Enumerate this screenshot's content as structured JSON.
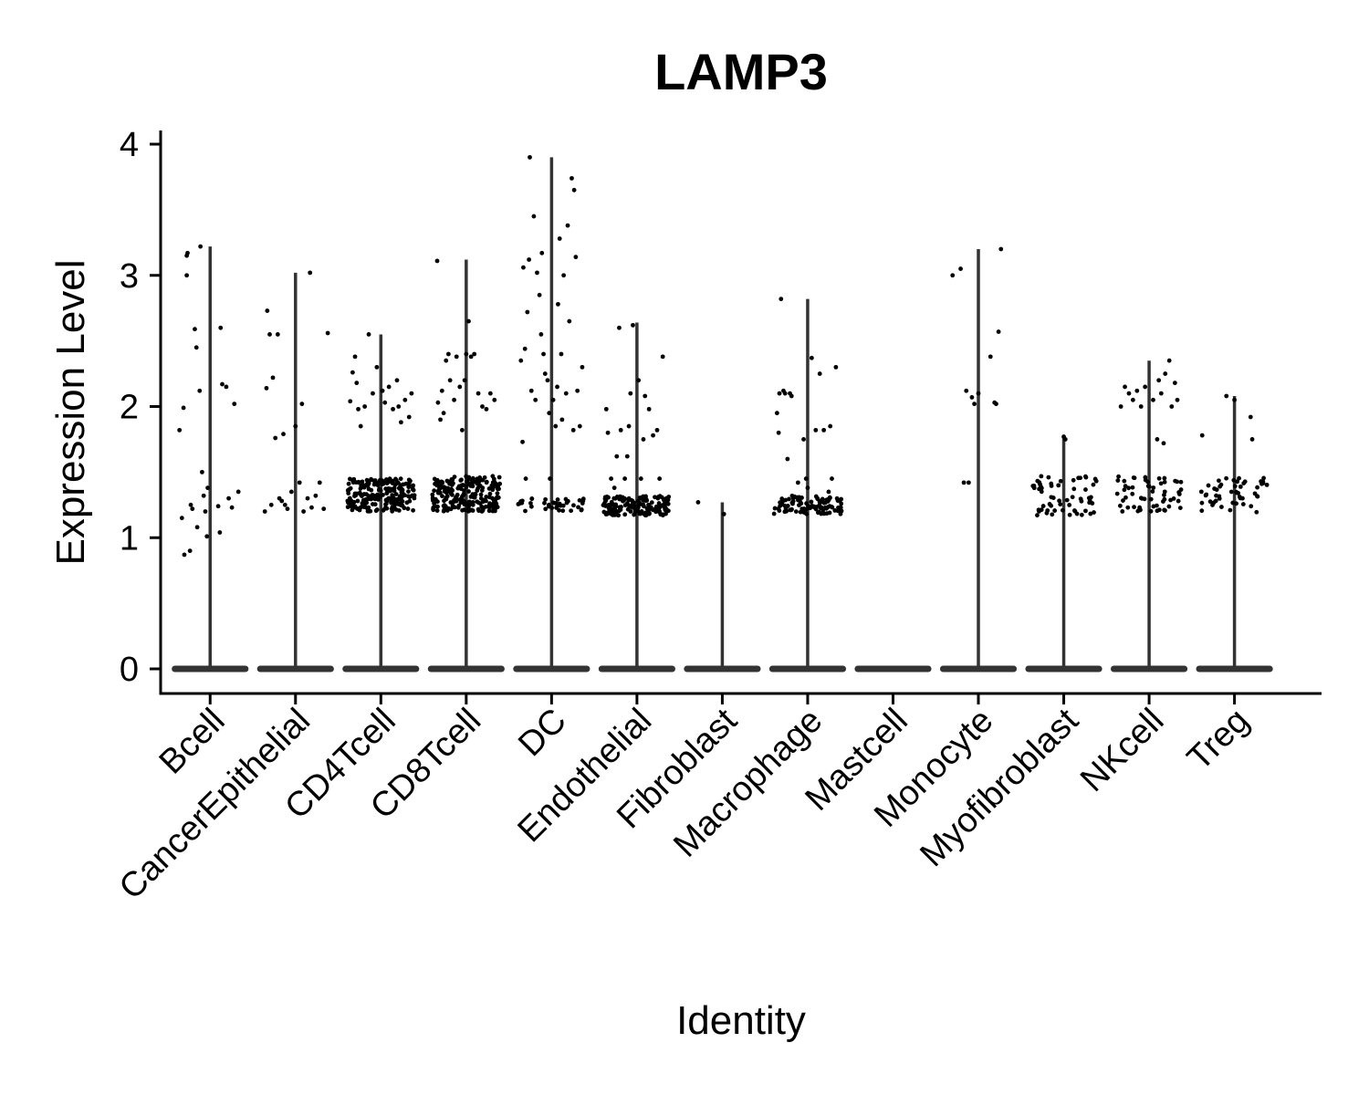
{
  "chart_data": {
    "type": "violin",
    "title": "LAMP3",
    "xlabel": "Identity",
    "ylabel": "Expression Level",
    "ylim": [
      -0.19,
      4.1
    ],
    "yticks": [
      0,
      1,
      2,
      3,
      4
    ],
    "grid": false,
    "legend": "none",
    "point_color": "#000000",
    "violin_color": "#333333",
    "categories": [
      "Bcell",
      "CancerEpithelial",
      "CD4Tcell",
      "CD8Tcell",
      "DC",
      "Endothelial",
      "Fibroblast",
      "Macrophage",
      "Mastcell",
      "Monocyte",
      "Myofibroblast",
      "NKcell",
      "Treg"
    ],
    "series": [
      {
        "name": "Bcell",
        "max": 3.22,
        "points": [
          [
            -0.38,
            1.82
          ],
          [
            -0.35,
            1.15
          ],
          [
            -0.33,
            1.99
          ],
          [
            -0.32,
            0.87
          ],
          [
            -0.29,
            3.15
          ],
          [
            -0.28,
            3.17
          ],
          [
            -0.29,
            3.0
          ],
          [
            -0.25,
            0.9
          ],
          [
            -0.24,
            1.25
          ],
          [
            -0.22,
            1.22
          ],
          [
            -0.19,
            2.59
          ],
          [
            -0.17,
            2.45
          ],
          [
            -0.16,
            1.08
          ],
          [
            -0.13,
            2.12
          ],
          [
            -0.12,
            3.22
          ],
          [
            -0.1,
            1.5
          ],
          [
            -0.08,
            1.32
          ],
          [
            -0.06,
            1.2
          ],
          [
            -0.04,
            1.01
          ],
          [
            -0.03,
            1.38
          ],
          [
            0.1,
            1.24
          ],
          [
            0.12,
            1.04
          ],
          [
            0.13,
            2.6
          ],
          [
            0.15,
            2.17
          ],
          [
            0.2,
            2.15
          ],
          [
            0.23,
            1.3
          ],
          [
            0.27,
            1.23
          ],
          [
            0.3,
            2.02
          ],
          [
            0.35,
            1.35
          ]
        ]
      },
      {
        "name": "CancerEpithelial",
        "max": 3.02,
        "points": [
          [
            -0.38,
            1.2
          ],
          [
            -0.36,
            2.14
          ],
          [
            -0.35,
            2.73
          ],
          [
            -0.32,
            2.55
          ],
          [
            -0.3,
            1.25
          ],
          [
            -0.28,
            2.22
          ],
          [
            -0.25,
            1.76
          ],
          [
            -0.22,
            2.55
          ],
          [
            -0.2,
            1.3
          ],
          [
            -0.17,
            1.28
          ],
          [
            -0.15,
            1.79
          ],
          [
            -0.13,
            1.25
          ],
          [
            -0.1,
            1.22
          ],
          [
            -0.05,
            1.35
          ],
          [
            0.0,
            1.85
          ],
          [
            0.05,
            1.42
          ],
          [
            0.08,
            2.02
          ],
          [
            0.1,
            1.2
          ],
          [
            0.15,
            1.3
          ],
          [
            0.18,
            3.02
          ],
          [
            0.2,
            1.23
          ],
          [
            0.25,
            1.32
          ],
          [
            0.3,
            1.42
          ],
          [
            0.35,
            1.22
          ],
          [
            0.4,
            2.56
          ]
        ]
      },
      {
        "name": "CD4Tcell",
        "max": 2.55,
        "points": [
          [
            -0.38,
            2.04
          ],
          [
            -0.35,
            2.26
          ],
          [
            -0.3,
            2.18
          ],
          [
            -0.28,
            1.98
          ],
          [
            -0.25,
            1.85
          ],
          [
            -0.2,
            2.0
          ],
          [
            -0.15,
            2.55
          ],
          [
            -0.1,
            2.1
          ],
          [
            -0.05,
            2.3
          ],
          [
            0.05,
            2.03
          ],
          [
            0.1,
            2.15
          ],
          [
            0.15,
            1.98
          ],
          [
            0.2,
            2.2
          ],
          [
            0.25,
            1.88
          ],
          [
            0.3,
            2.05
          ],
          [
            0.35,
            1.92
          ],
          [
            0.38,
            2.1
          ],
          [
            -0.32,
            2.38
          ],
          [
            0.02,
            2.12
          ],
          [
            0.22,
            2.0
          ]
        ],
        "dense": {
          "n": 220,
          "y0": 1.2,
          "y1": 1.45
        }
      },
      {
        "name": "CD8Tcell",
        "max": 3.12,
        "points": [
          [
            -0.36,
            3.11
          ],
          [
            -0.35,
            2.03
          ],
          [
            -0.32,
            1.9
          ],
          [
            -0.3,
            2.12
          ],
          [
            -0.25,
            2.35
          ],
          [
            -0.22,
            2.4
          ],
          [
            -0.2,
            2.2
          ],
          [
            -0.15,
            2.05
          ],
          [
            -0.12,
            2.38
          ],
          [
            -0.08,
            2.15
          ],
          [
            -0.05,
            1.82
          ],
          [
            -0.02,
            2.2
          ],
          [
            0.03,
            2.65
          ],
          [
            0.06,
            2.38
          ],
          [
            0.1,
            2.4
          ],
          [
            0.15,
            2.1
          ],
          [
            0.2,
            2.0
          ],
          [
            0.25,
            1.98
          ],
          [
            0.3,
            2.1
          ],
          [
            0.35,
            2.05
          ],
          [
            0.0,
            2.4
          ],
          [
            -0.28,
            1.95
          ]
        ],
        "dense": {
          "n": 230,
          "y0": 1.2,
          "y1": 1.47
        }
      },
      {
        "name": "DC",
        "max": 3.9,
        "points": [
          [
            -0.38,
            2.35
          ],
          [
            -0.36,
            1.73
          ],
          [
            -0.35,
            3.06
          ],
          [
            -0.33,
            2.44
          ],
          [
            -0.32,
            1.45
          ],
          [
            -0.3,
            2.72
          ],
          [
            -0.28,
            3.12
          ],
          [
            -0.27,
            3.9
          ],
          [
            -0.25,
            2.12
          ],
          [
            -0.22,
            3.45
          ],
          [
            -0.2,
            2.05
          ],
          [
            -0.18,
            3.02
          ],
          [
            -0.15,
            2.85
          ],
          [
            -0.13,
            2.55
          ],
          [
            -0.12,
            3.17
          ],
          [
            -0.1,
            2.4
          ],
          [
            -0.08,
            2.25
          ],
          [
            -0.05,
            2.2
          ],
          [
            -0.03,
            1.95
          ],
          [
            0.02,
            2.05
          ],
          [
            0.05,
            1.85
          ],
          [
            0.08,
            2.78
          ],
          [
            0.1,
            3.28
          ],
          [
            0.12,
            2.4
          ],
          [
            0.15,
            3.0
          ],
          [
            0.18,
            2.1
          ],
          [
            0.2,
            3.38
          ],
          [
            0.22,
            2.65
          ],
          [
            0.25,
            3.74
          ],
          [
            0.28,
            3.65
          ],
          [
            0.3,
            3.14
          ],
          [
            0.32,
            2.12
          ],
          [
            0.35,
            1.85
          ],
          [
            0.38,
            2.3
          ],
          [
            0.07,
            2.15
          ],
          [
            0.13,
            1.9
          ],
          [
            -0.02,
            1.45
          ],
          [
            0.27,
            1.82
          ]
        ],
        "dense": {
          "n": 40,
          "y0": 1.2,
          "y1": 1.3
        }
      },
      {
        "name": "Endothelial",
        "max": 2.64,
        "points": [
          [
            -0.38,
            1.98
          ],
          [
            -0.36,
            1.8
          ],
          [
            -0.32,
            1.45
          ],
          [
            -0.28,
            1.38
          ],
          [
            -0.25,
            1.62
          ],
          [
            -0.22,
            2.6
          ],
          [
            -0.2,
            1.82
          ],
          [
            -0.15,
            1.45
          ],
          [
            -0.12,
            1.62
          ],
          [
            -0.08,
            2.1
          ],
          [
            -0.05,
            2.62
          ],
          [
            0.02,
            2.2
          ],
          [
            0.05,
            1.45
          ],
          [
            0.1,
            2.08
          ],
          [
            0.15,
            1.98
          ],
          [
            0.2,
            1.78
          ],
          [
            0.25,
            1.82
          ],
          [
            0.28,
            1.45
          ],
          [
            0.32,
            2.38
          ],
          [
            0.08,
            1.75
          ],
          [
            -0.1,
            1.85
          ]
        ],
        "dense": {
          "n": 160,
          "y0": 1.17,
          "y1": 1.32
        }
      },
      {
        "name": "Fibroblast",
        "max": 1.27,
        "points": [
          [
            -0.3,
            1.27
          ],
          [
            0.02,
            1.18
          ]
        ]
      },
      {
        "name": "Macrophage",
        "max": 2.82,
        "points": [
          [
            -0.38,
            1.95
          ],
          [
            -0.36,
            1.8
          ],
          [
            -0.35,
            2.1
          ],
          [
            -0.33,
            2.82
          ],
          [
            -0.3,
            2.12
          ],
          [
            -0.28,
            2.1
          ],
          [
            -0.25,
            1.6
          ],
          [
            -0.22,
            2.1
          ],
          [
            -0.2,
            2.08
          ],
          [
            -0.12,
            1.42
          ],
          [
            -0.05,
            1.75
          ],
          [
            0.0,
            1.38
          ],
          [
            0.05,
            2.37
          ],
          [
            0.1,
            1.82
          ],
          [
            0.15,
            2.25
          ],
          [
            0.2,
            1.82
          ],
          [
            0.28,
            1.85
          ],
          [
            0.35,
            2.3
          ],
          [
            0.3,
            1.45
          ],
          [
            0.12,
            1.3
          ],
          [
            -0.02,
            1.45
          ],
          [
            0.26,
            1.35
          ]
        ],
        "dense": {
          "n": 110,
          "y0": 1.18,
          "y1": 1.32
        }
      },
      {
        "name": "Mastcell",
        "max": 0,
        "points": []
      },
      {
        "name": "Monocyte",
        "max": 3.2,
        "points": [
          [
            -0.32,
            3.0
          ],
          [
            -0.22,
            3.05
          ],
          [
            -0.18,
            1.42
          ],
          [
            -0.15,
            2.12
          ],
          [
            -0.12,
            1.42
          ],
          [
            -0.08,
            2.07
          ],
          [
            -0.05,
            2.02
          ],
          [
            0.0,
            2.1
          ],
          [
            0.15,
            2.38
          ],
          [
            0.2,
            2.03
          ],
          [
            0.22,
            2.02
          ],
          [
            0.25,
            2.57
          ],
          [
            0.28,
            3.2
          ]
        ]
      },
      {
        "name": "Myofibroblast",
        "max": 1.77,
        "points": [
          [
            0.0,
            1.77
          ],
          [
            0.02,
            1.75
          ]
        ],
        "dense": {
          "n": 60,
          "y0": 1.17,
          "y1": 1.47
        }
      },
      {
        "name": "NKcell",
        "max": 2.35,
        "points": [
          [
            -0.35,
            2.0
          ],
          [
            -0.3,
            2.15
          ],
          [
            -0.25,
            2.1
          ],
          [
            -0.2,
            2.05
          ],
          [
            -0.15,
            2.12
          ],
          [
            -0.1,
            2.0
          ],
          [
            0.05,
            2.05
          ],
          [
            0.1,
            1.75
          ],
          [
            0.12,
            2.2
          ],
          [
            0.15,
            2.1
          ],
          [
            0.18,
            1.72
          ],
          [
            0.2,
            2.25
          ],
          [
            0.25,
            2.35
          ],
          [
            0.28,
            2.0
          ],
          [
            0.32,
            2.18
          ],
          [
            0.35,
            2.05
          ],
          [
            -0.05,
            2.15
          ]
        ],
        "dense": {
          "n": 60,
          "y0": 1.2,
          "y1": 1.47
        }
      },
      {
        "name": "Treg",
        "max": 2.08,
        "points": [
          [
            -0.4,
            1.78
          ],
          [
            -0.1,
            2.08
          ],
          [
            0.0,
            2.05
          ],
          [
            0.2,
            1.92
          ],
          [
            0.22,
            1.75
          ],
          [
            0.1,
            1.3
          ]
        ],
        "dense": {
          "n": 50,
          "y0": 1.18,
          "y1": 1.47
        }
      }
    ]
  }
}
